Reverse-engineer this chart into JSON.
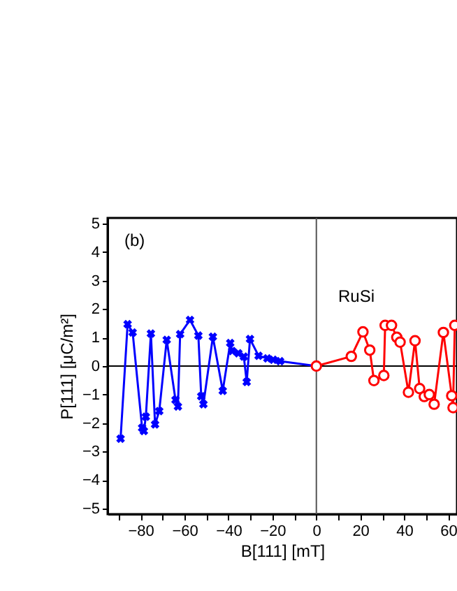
{
  "chart_data": {
    "type": "line",
    "xlabel": "B[111] [mT]",
    "ylabel": "P[111] [μC/m²]",
    "annotations": [
      "(b)",
      "RuSi"
    ],
    "xlim": [
      -95,
      64
    ],
    "ylim": [
      -5.2,
      5.2
    ],
    "xticks": [
      {
        "value": -90,
        "label": null
      },
      -80,
      {
        "value": -70,
        "label": null
      },
      -60,
      {
        "value": -50,
        "label": null
      },
      -40,
      {
        "value": -30,
        "label": null
      },
      -20,
      {
        "value": -10,
        "label": null
      },
      0,
      {
        "value": 10,
        "label": null
      },
      20,
      {
        "value": 30,
        "label": null
      },
      40,
      {
        "value": 50,
        "label": null
      },
      60
    ],
    "yticks": [
      -5,
      -4,
      -3,
      -2,
      -1,
      0,
      1,
      2,
      3,
      4,
      5
    ],
    "grid": false,
    "line_style": "solid",
    "ref_lines": [
      {
        "axis": "x",
        "value": 0,
        "color": "#555555"
      },
      {
        "axis": "y",
        "value": 0,
        "color": "#000000"
      }
    ],
    "series": [
      {
        "color": "#0000ff",
        "marker": "cross",
        "x": [
          -89.1,
          -85.9,
          -83.6,
          -79.3,
          -78.5,
          -77.6,
          -75.3,
          -73.4,
          -71.5,
          -68.1,
          -64.1,
          -63.0,
          -62.0,
          -57.5,
          -53.7,
          -52.4,
          -51.4,
          -47.1,
          -42.6,
          -39.2,
          -38.3,
          -35.5,
          -33.0,
          -31.7,
          -30.2,
          -26.3,
          -22.3,
          -19.6,
          -16.5,
          0
        ],
        "values": [
          -2.55,
          1.47,
          1.18,
          -2.17,
          -2.28,
          -1.78,
          1.14,
          -2.05,
          -1.58,
          0.92,
          -1.19,
          -1.42,
          1.12,
          1.62,
          1.07,
          -1.06,
          -1.34,
          1.03,
          -0.87,
          0.81,
          0.53,
          0.45,
          0.33,
          -0.56,
          0.95,
          0.36,
          0.27,
          0.22,
          0.17,
          0
        ]
      },
      {
        "color": "#ff0000",
        "marker": "circle",
        "x": [
          0,
          15.9,
          21.2,
          24.3,
          26.2,
          30.7,
          31.3,
          34.2,
          36.6,
          38.1,
          41.9,
          44.9,
          47.0,
          49.1,
          51.4,
          53.6,
          57.8,
          61.6,
          62.2,
          63.0
        ],
        "values": [
          0,
          0.34,
          1.2,
          0.56,
          -0.51,
          -0.33,
          1.43,
          1.43,
          1.01,
          0.84,
          -0.92,
          0.89,
          -0.79,
          -1.07,
          -1.0,
          -1.34,
          1.18,
          -1.04,
          -1.46,
          1.43
        ]
      }
    ]
  }
}
